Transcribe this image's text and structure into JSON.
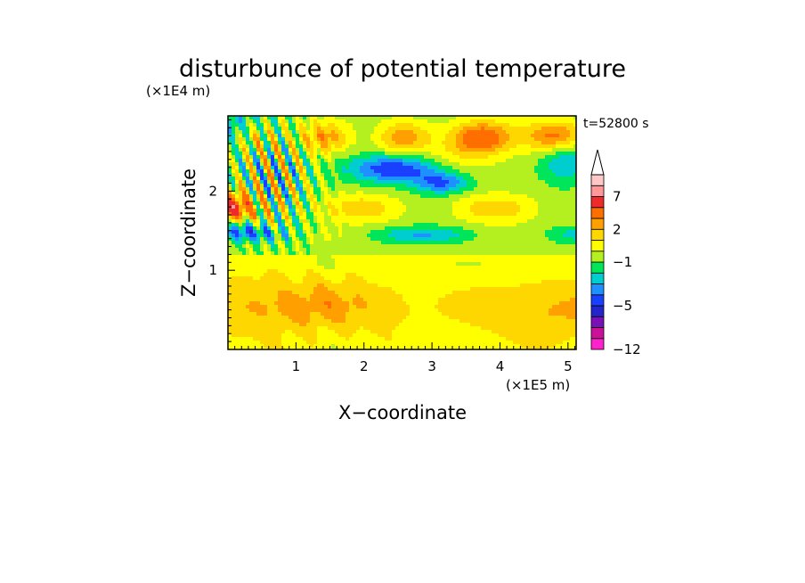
{
  "chart_data": {
    "type": "heatmap",
    "title": "disturbunce of potential temperature",
    "time_label": "t=52800 s",
    "xlabel": "X−coordinate",
    "ylabel": "Z−coordinate",
    "x_unit": "(×1E5 m)",
    "y_unit": "(×1E4 m)",
    "xlim": [
      0,
      5.12
    ],
    "ylim": [
      0,
      2.95
    ],
    "x_ticks": [
      {
        "value": 1,
        "label": "1"
      },
      {
        "value": 2,
        "label": "2"
      },
      {
        "value": 3,
        "label": "3"
      },
      {
        "value": 4,
        "label": "4"
      },
      {
        "value": 5,
        "label": "5"
      }
    ],
    "y_ticks": [
      {
        "value": 1,
        "label": "1"
      },
      {
        "value": 2,
        "label": "2"
      }
    ],
    "colorbar": {
      "levels_bottom_to_top": [
        -12,
        -10,
        -8,
        -6,
        -5,
        -4,
        -3,
        -2,
        -1,
        0,
        1,
        2,
        3,
        5,
        7,
        9,
        11
      ],
      "colors_bottom_to_top": [
        "#ff22cc",
        "#cc1199",
        "#7a10b8",
        "#2525cc",
        "#1a40ff",
        "#1e90ff",
        "#00cdcd",
        "#00e55a",
        "#b4f020",
        "#ffff00",
        "#ffd700",
        "#ffa000",
        "#ff6f00",
        "#ee2a2a",
        "#ff9898",
        "#ffc8c8"
      ],
      "extend": "max",
      "tick_labels": [
        {
          "value": -12,
          "label": "−12"
        },
        {
          "value": -5,
          "label": "−5"
        },
        {
          "value": -1,
          "label": "−1"
        },
        {
          "value": 2,
          "label": "2"
        },
        {
          "value": 7,
          "label": "7"
        }
      ]
    }
  }
}
